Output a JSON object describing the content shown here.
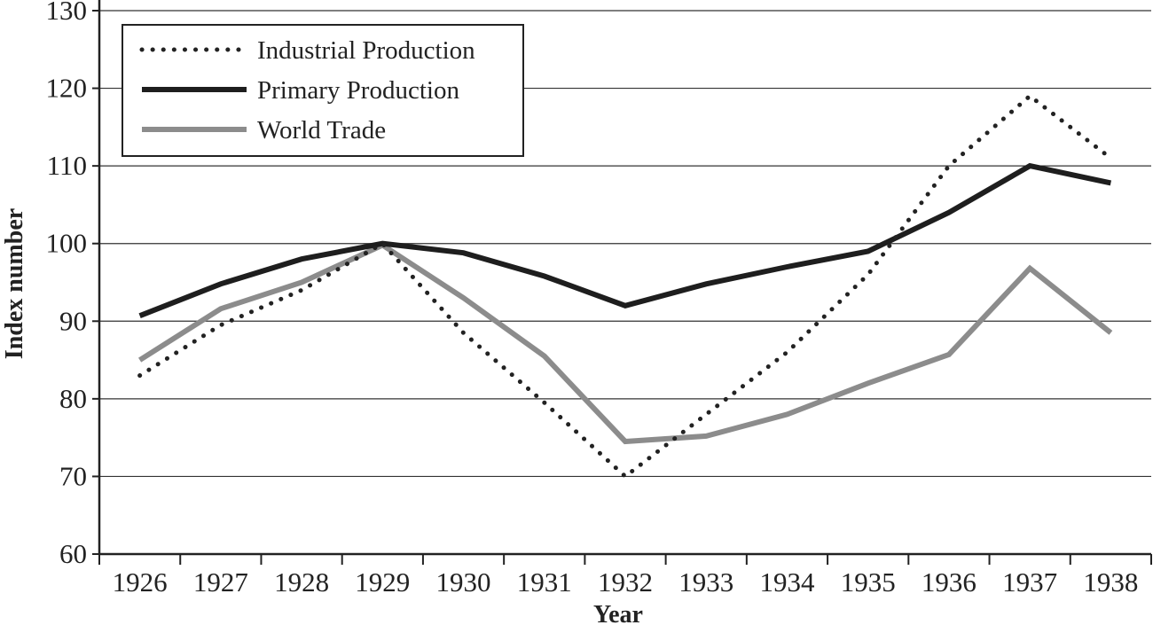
{
  "chart_data": {
    "type": "line",
    "title": "",
    "xlabel": "Year",
    "ylabel": "Index number",
    "ylim": [
      60,
      130
    ],
    "yticks": [
      60,
      70,
      80,
      90,
      100,
      110,
      120,
      130
    ],
    "categories": [
      "1926",
      "1927",
      "1928",
      "1929",
      "1930",
      "1931",
      "1932",
      "1933",
      "1934",
      "1935",
      "1936",
      "1937",
      "1938"
    ],
    "grid": "horizontal",
    "legend_position": "top-left",
    "series": [
      {
        "name": "Industrial Production",
        "style": "dotted",
        "color": "#222222",
        "values": [
          83,
          89.5,
          94,
          100,
          88.5,
          79.5,
          70,
          78,
          86,
          96,
          110,
          119,
          111
        ]
      },
      {
        "name": "Primary Production",
        "style": "solid",
        "color": "#1e1e1e",
        "values": [
          90.7,
          94.8,
          98,
          100,
          98.8,
          95.8,
          92,
          94.8,
          97,
          99,
          104,
          110,
          107.8
        ]
      },
      {
        "name": "World Trade",
        "style": "solid",
        "color": "#8c8c8c",
        "values": [
          85,
          91.6,
          95,
          99.8,
          93,
          85.5,
          74.5,
          75.2,
          78,
          82,
          85.7,
          96.8,
          88.5
        ]
      }
    ]
  }
}
